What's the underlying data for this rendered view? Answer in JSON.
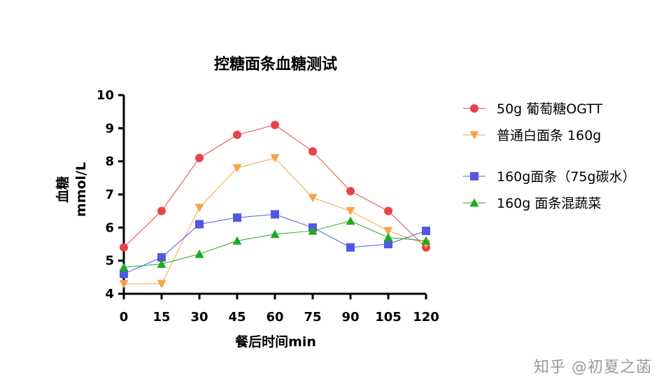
{
  "chart_data": {
    "type": "line",
    "title": "控糖面条血糖测试",
    "xlabel": "餐后时间min",
    "ylabel_line1": "血糖",
    "ylabel_line2": "mmol/L",
    "x": [
      0,
      15,
      30,
      45,
      60,
      75,
      90,
      105,
      120
    ],
    "xlim": [
      0,
      120
    ],
    "ylim": [
      4,
      10
    ],
    "yticks": [
      4,
      5,
      6,
      7,
      8,
      9,
      10
    ],
    "grid": false,
    "legend_position": "right",
    "series": [
      {
        "name": "50g 葡萄糖OGTT",
        "marker": "circle",
        "color": "#e8434b",
        "values": [
          5.4,
          6.5,
          8.1,
          8.8,
          9.1,
          8.3,
          7.1,
          6.5,
          5.4
        ]
      },
      {
        "name": "普通白面条 160g",
        "marker": "triangle-down",
        "color": "#f4a44a",
        "values": [
          4.3,
          4.3,
          6.6,
          7.8,
          8.1,
          6.9,
          6.5,
          5.9,
          5.5
        ]
      },
      {
        "name": "160g面条（75g碳水）",
        "marker": "square",
        "color": "#5258e0",
        "values": [
          4.6,
          5.1,
          6.1,
          6.3,
          6.4,
          6.0,
          5.4,
          5.5,
          5.9
        ]
      },
      {
        "name": "160g 面条混蔬菜",
        "marker": "triangle-up",
        "color": "#1eaa1e",
        "values": [
          4.8,
          4.9,
          5.2,
          5.6,
          5.8,
          5.9,
          6.2,
          5.7,
          5.6
        ]
      }
    ]
  },
  "watermark": "知乎 @初夏之菡"
}
